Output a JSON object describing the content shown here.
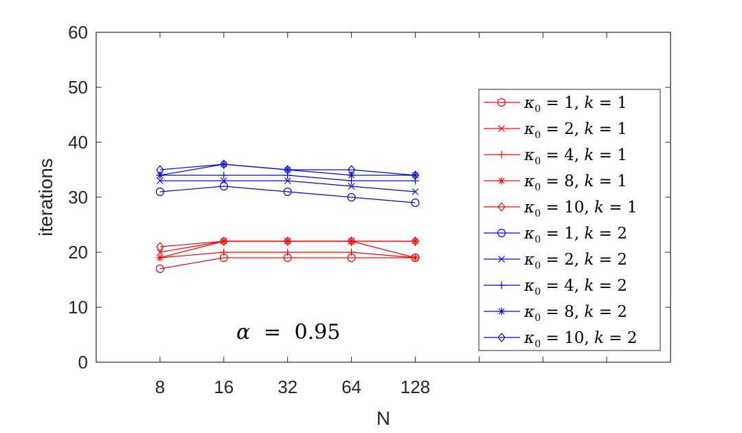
{
  "chart_data": {
    "type": "line",
    "title": "",
    "xlabel": "N",
    "ylabel": "iterations",
    "categories": [
      "8",
      "16",
      "32",
      "64",
      "128"
    ],
    "x_slots": 8,
    "ylim": [
      0,
      60
    ],
    "yticks": [
      "0",
      "10",
      "20",
      "30",
      "40",
      "50",
      "60"
    ],
    "grid": false,
    "legend_position": "right",
    "annotation": {
      "alpha": "α",
      "equals": "=",
      "value": "0.95"
    },
    "series": [
      {
        "name": "κ0 = 1, k = 1",
        "kappa": "1",
        "k": "1",
        "color": "#ff0000",
        "marker": "circle",
        "values": [
          17,
          19,
          19,
          19,
          19
        ]
      },
      {
        "name": "κ0 = 2, k = 1",
        "kappa": "2",
        "k": "1",
        "color": "#ff0000",
        "marker": "x",
        "values": [
          20,
          22,
          22,
          22,
          19
        ]
      },
      {
        "name": "κ0 = 4, k = 1",
        "kappa": "4",
        "k": "1",
        "color": "#ff0000",
        "marker": "plus",
        "values": [
          19,
          20,
          20,
          20,
          19
        ]
      },
      {
        "name": "κ0 = 8, k = 1",
        "kappa": "8",
        "k": "1",
        "color": "#ff0000",
        "marker": "asterisk",
        "values": [
          19,
          22,
          22,
          22,
          22
        ]
      },
      {
        "name": "κ0 = 10, k = 1",
        "kappa": "10",
        "k": "1",
        "color": "#ff0000",
        "marker": "diamond",
        "values": [
          21,
          22,
          22,
          22,
          22
        ]
      },
      {
        "name": "κ0 = 1, k = 2",
        "kappa": "1",
        "k": "2",
        "color": "#0000ff",
        "marker": "circle",
        "values": [
          31,
          32,
          31,
          30,
          29
        ]
      },
      {
        "name": "κ0 = 2, k = 2",
        "kappa": "2",
        "k": "2",
        "color": "#0000ff",
        "marker": "x",
        "values": [
          33,
          33,
          33,
          32,
          31
        ]
      },
      {
        "name": "κ0 = 4, k = 2",
        "kappa": "4",
        "k": "2",
        "color": "#0000ff",
        "marker": "plus",
        "values": [
          34,
          34,
          34,
          33,
          33
        ]
      },
      {
        "name": "κ0 = 8, k = 2",
        "kappa": "8",
        "k": "2",
        "color": "#0000ff",
        "marker": "asterisk",
        "values": [
          34,
          36,
          35,
          34,
          34
        ]
      },
      {
        "name": "κ0 = 10, k = 2",
        "kappa": "10",
        "k": "2",
        "color": "#0000ff",
        "marker": "diamond",
        "values": [
          35,
          36,
          35,
          35,
          34
        ]
      }
    ]
  }
}
